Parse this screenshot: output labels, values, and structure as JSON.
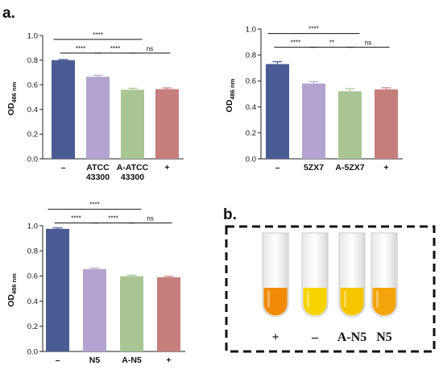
{
  "panel_labels": {
    "a": "a.",
    "b": "b."
  },
  "chart_data": [
    {
      "type": "bar",
      "ylabel_main": "OD",
      "ylabel_sub": "486 nm",
      "ylim": [
        0,
        1.0
      ],
      "yticks": [
        "0.0",
        "0.2",
        "0.4",
        "0.6",
        "0.8",
        "1.0"
      ],
      "categories": [
        [
          "–"
        ],
        [
          "ATCC",
          "43300"
        ],
        [
          "A-ATCC",
          "43300"
        ],
        [
          "+"
        ]
      ],
      "values": [
        0.8,
        0.665,
        0.56,
        0.565
      ],
      "errors": [
        0.005,
        0.012,
        0.012,
        0.01
      ],
      "colors": [
        "#4a5b94",
        "#b3a3d1",
        "#a9c594",
        "#c57e7c"
      ],
      "significance": [
        {
          "from": 0,
          "to": 2,
          "label": "****"
        },
        {
          "from": 0,
          "to": 1,
          "label": "****"
        },
        {
          "from": 1,
          "to": 2,
          "label": "****"
        },
        {
          "from": 2,
          "to": 3,
          "label": "ns"
        }
      ]
    },
    {
      "type": "bar",
      "ylabel_main": "OD",
      "ylabel_sub": "486 nm",
      "ylim": [
        0,
        1.0
      ],
      "yticks": [
        "0.0",
        "0.2",
        "0.4",
        "0.6",
        "0.8",
        "1.0"
      ],
      "categories": [
        [
          "–"
        ],
        [
          "5ZX7"
        ],
        [
          "A-5ZX7"
        ],
        [
          "+"
        ]
      ],
      "values": [
        0.73,
        0.58,
        0.52,
        0.535
      ],
      "errors": [
        0.018,
        0.015,
        0.02,
        0.012
      ],
      "colors": [
        "#4a5b94",
        "#b3a3d1",
        "#a9c594",
        "#c57e7c"
      ],
      "significance": [
        {
          "from": 0,
          "to": 2,
          "label": "****"
        },
        {
          "from": 0,
          "to": 1,
          "label": "****"
        },
        {
          "from": 1,
          "to": 2,
          "label": "**"
        },
        {
          "from": 2,
          "to": 3,
          "label": "ns"
        }
      ]
    },
    {
      "type": "bar",
      "ylabel_main": "OD",
      "ylabel_sub": "486 nm",
      "ylim": [
        0,
        1.0
      ],
      "yticks": [
        "0.0",
        "0.2",
        "0.4",
        "0.6",
        "0.8",
        "1.0"
      ],
      "categories": [
        [
          "–"
        ],
        [
          "N5"
        ],
        [
          "A-N5"
        ],
        [
          "+"
        ]
      ],
      "values": [
        0.975,
        0.655,
        0.598,
        0.59
      ],
      "errors": [
        0.008,
        0.008,
        0.008,
        0.008
      ],
      "colors": [
        "#4a5b94",
        "#b3a3d1",
        "#a9c594",
        "#c57e7c"
      ],
      "significance": [
        {
          "from": 0,
          "to": 2,
          "label": "****"
        },
        {
          "from": 0,
          "to": 1,
          "label": "****"
        },
        {
          "from": 1,
          "to": 2,
          "label": "****"
        },
        {
          "from": 2,
          "to": 3,
          "label": "ns"
        }
      ]
    }
  ],
  "photo": {
    "tube_labels": [
      "+",
      "–",
      "A-N5",
      "N5"
    ],
    "tube_colors": [
      "#f08a08",
      "#f7d400",
      "#f5c500",
      "#f2a40a"
    ],
    "border_color": "#111111"
  }
}
